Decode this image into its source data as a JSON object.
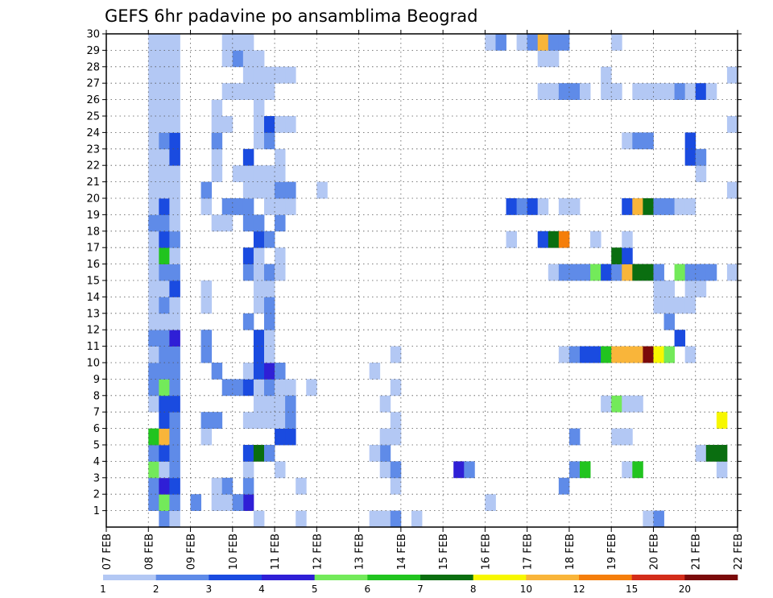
{
  "chart_data": {
    "type": "heatmap",
    "title": "GEFS 6hr padavine po ansamblima Beograd",
    "x_ticks": [
      "07 FEB",
      "08 FEB",
      "09 FEB",
      "10 FEB",
      "11 FEB",
      "12 FEB",
      "13 FEB",
      "14 FEB",
      "15 FEB",
      "16 FEB",
      "17 FEB",
      "18 FEB",
      "19 FEB",
      "20 FEB",
      "21 FEB",
      "22 FEB"
    ],
    "y_ticks": [
      "1",
      "2",
      "3",
      "4",
      "5",
      "6",
      "7",
      "8",
      "9",
      "10",
      "11",
      "12",
      "13",
      "14",
      "15",
      "16",
      "17",
      "18",
      "19",
      "20",
      "21",
      "22",
      "23",
      "24",
      "25",
      "26",
      "27",
      "28",
      "29",
      "30"
    ],
    "ylim": [
      0,
      30
    ],
    "x_steps_per_day": 4,
    "x_total_steps": 60,
    "grid": true,
    "colorbar": {
      "labels": [
        "1",
        "2",
        "3",
        "4",
        "5",
        "6",
        "7",
        "8",
        "10",
        "12",
        "15",
        "20"
      ],
      "colors": [
        "#b3c8f4",
        "#5f8be8",
        "#1a4be0",
        "#2f1fd6",
        "#73ea5a",
        "#21c41f",
        "#0a6e10",
        "#f7f700",
        "#f9b53a",
        "#f57e0a",
        "#d32d1a",
        "#7b0a0a"
      ]
    },
    "cells": [
      [
        0,
        5,
        1
      ],
      [
        0,
        6,
        0
      ],
      [
        1,
        4,
        1
      ],
      [
        1,
        5,
        4
      ],
      [
        1,
        6,
        1
      ],
      [
        1,
        8,
        1
      ],
      [
        1,
        13,
        3
      ],
      [
        2,
        4,
        1
      ],
      [
        2,
        5,
        3
      ],
      [
        2,
        6,
        2
      ],
      [
        2,
        13,
        1
      ],
      [
        2,
        43,
        1
      ],
      [
        3,
        4,
        4
      ],
      [
        3,
        5,
        0
      ],
      [
        3,
        6,
        1
      ],
      [
        3,
        13,
        0
      ],
      [
        3,
        16,
        0
      ],
      [
        3,
        33,
        3
      ],
      [
        3,
        34,
        1
      ],
      [
        4,
        4,
        1
      ],
      [
        4,
        5,
        2
      ],
      [
        4,
        6,
        1
      ],
      [
        4,
        13,
        2
      ],
      [
        4,
        14,
        6
      ],
      [
        4,
        15,
        1
      ],
      [
        5,
        4,
        5
      ],
      [
        5,
        5,
        8
      ],
      [
        5,
        6,
        1
      ],
      [
        5,
        9,
        0
      ],
      [
        5,
        16,
        2
      ],
      [
        5,
        17,
        2
      ],
      [
        6,
        5,
        2
      ],
      [
        6,
        6,
        1
      ],
      [
        6,
        9,
        1
      ],
      [
        6,
        10,
        1
      ],
      [
        6,
        13,
        0
      ],
      [
        6,
        14,
        0
      ],
      [
        6,
        15,
        0
      ],
      [
        6,
        16,
        0
      ],
      [
        6,
        17,
        1
      ],
      [
        7,
        4,
        0
      ],
      [
        7,
        5,
        2
      ],
      [
        7,
        6,
        2
      ],
      [
        7,
        14,
        0
      ],
      [
        7,
        15,
        0
      ],
      [
        7,
        16,
        0
      ],
      [
        8,
        4,
        1
      ],
      [
        8,
        5,
        4
      ],
      [
        8,
        6,
        1
      ],
      [
        8,
        11,
        1
      ],
      [
        8,
        12,
        1
      ],
      [
        8,
        13,
        2
      ],
      [
        8,
        14,
        0
      ],
      [
        8,
        15,
        1
      ],
      [
        8,
        16,
        0
      ],
      [
        8,
        17,
        0
      ],
      [
        9,
        4,
        1
      ],
      [
        9,
        5,
        1
      ],
      [
        9,
        6,
        1
      ],
      [
        9,
        10,
        1
      ],
      [
        9,
        13,
        0
      ],
      [
        9,
        14,
        2
      ],
      [
        9,
        15,
        3
      ],
      [
        9,
        16,
        1
      ],
      [
        10,
        4,
        0
      ],
      [
        10,
        5,
        1
      ],
      [
        10,
        6,
        1
      ],
      [
        10,
        9,
        1
      ],
      [
        10,
        14,
        2
      ],
      [
        10,
        15,
        0
      ],
      [
        11,
        4,
        1
      ],
      [
        11,
        5,
        1
      ],
      [
        11,
        6,
        3
      ],
      [
        11,
        9,
        1
      ],
      [
        11,
        14,
        2
      ],
      [
        11,
        15,
        0
      ],
      [
        12,
        4,
        0
      ],
      [
        12,
        5,
        0
      ],
      [
        12,
        6,
        0
      ],
      [
        12,
        13,
        1
      ],
      [
        12,
        15,
        1
      ],
      [
        13,
        4,
        0
      ],
      [
        13,
        5,
        1
      ],
      [
        13,
        6,
        0
      ],
      [
        13,
        9,
        0
      ],
      [
        13,
        14,
        0
      ],
      [
        13,
        15,
        1
      ],
      [
        14,
        4,
        0
      ],
      [
        14,
        5,
        0
      ],
      [
        14,
        6,
        2
      ],
      [
        14,
        9,
        0
      ],
      [
        14,
        14,
        0
      ],
      [
        14,
        15,
        0
      ],
      [
        15,
        4,
        0
      ],
      [
        15,
        5,
        1
      ],
      [
        15,
        6,
        1
      ],
      [
        15,
        13,
        1
      ],
      [
        15,
        14,
        0
      ],
      [
        15,
        15,
        1
      ],
      [
        15,
        16,
        0
      ],
      [
        16,
        4,
        0
      ],
      [
        16,
        5,
        5
      ],
      [
        16,
        6,
        0
      ],
      [
        16,
        13,
        2
      ],
      [
        16,
        14,
        0
      ],
      [
        16,
        16,
        0
      ],
      [
        17,
        4,
        0
      ],
      [
        17,
        5,
        2
      ],
      [
        17,
        6,
        1
      ],
      [
        17,
        14,
        2
      ],
      [
        17,
        15,
        1
      ],
      [
        18,
        4,
        1
      ],
      [
        18,
        5,
        1
      ],
      [
        18,
        6,
        0
      ],
      [
        18,
        13,
        1
      ],
      [
        18,
        14,
        1
      ],
      [
        18,
        16,
        1
      ],
      [
        19,
        4,
        0
      ],
      [
        19,
        5,
        2
      ],
      [
        19,
        6,
        0
      ],
      [
        19,
        9,
        0
      ],
      [
        19,
        11,
        1
      ],
      [
        19,
        12,
        1
      ],
      [
        19,
        13,
        1
      ],
      [
        19,
        15,
        0
      ],
      [
        19,
        16,
        0
      ],
      [
        19,
        17,
        0
      ],
      [
        20,
        4,
        0
      ],
      [
        20,
        5,
        0
      ],
      [
        20,
        6,
        0
      ],
      [
        20,
        9,
        1
      ],
      [
        20,
        13,
        0
      ],
      [
        20,
        14,
        0
      ],
      [
        20,
        15,
        0
      ],
      [
        20,
        16,
        1
      ],
      [
        20,
        17,
        1
      ],
      [
        20,
        20,
        0
      ],
      [
        21,
        4,
        0
      ],
      [
        21,
        5,
        0
      ],
      [
        21,
        6,
        0
      ],
      [
        21,
        10,
        0
      ],
      [
        21,
        12,
        0
      ],
      [
        21,
        13,
        0
      ],
      [
        21,
        14,
        0
      ],
      [
        21,
        15,
        0
      ],
      [
        21,
        16,
        0
      ],
      [
        22,
        4,
        0
      ],
      [
        22,
        5,
        0
      ],
      [
        22,
        6,
        2
      ],
      [
        22,
        10,
        0
      ],
      [
        22,
        13,
        2
      ],
      [
        22,
        16,
        0
      ],
      [
        23,
        4,
        0
      ],
      [
        23,
        5,
        1
      ],
      [
        23,
        6,
        2
      ],
      [
        23,
        10,
        1
      ],
      [
        23,
        14,
        0
      ],
      [
        23,
        15,
        1
      ],
      [
        24,
        4,
        0
      ],
      [
        24,
        5,
        0
      ],
      [
        24,
        6,
        0
      ],
      [
        24,
        10,
        0
      ],
      [
        24,
        11,
        0
      ],
      [
        24,
        14,
        0
      ],
      [
        24,
        15,
        2
      ],
      [
        24,
        16,
        0
      ],
      [
        24,
        17,
        0
      ],
      [
        25,
        4,
        0
      ],
      [
        25,
        5,
        0
      ],
      [
        25,
        6,
        0
      ],
      [
        25,
        10,
        0
      ],
      [
        25,
        14,
        0
      ],
      [
        26,
        4,
        0
      ],
      [
        26,
        5,
        0
      ],
      [
        26,
        6,
        0
      ],
      [
        26,
        11,
        0
      ],
      [
        26,
        12,
        0
      ],
      [
        26,
        13,
        0
      ],
      [
        26,
        14,
        0
      ],
      [
        26,
        15,
        0
      ],
      [
        27,
        4,
        0
      ],
      [
        27,
        5,
        0
      ],
      [
        27,
        6,
        0
      ],
      [
        27,
        13,
        0
      ],
      [
        27,
        14,
        0
      ],
      [
        27,
        15,
        0
      ],
      [
        27,
        16,
        0
      ],
      [
        27,
        17,
        0
      ],
      [
        28,
        4,
        0
      ],
      [
        28,
        5,
        0
      ],
      [
        28,
        6,
        0
      ],
      [
        28,
        11,
        0
      ],
      [
        28,
        12,
        1
      ],
      [
        28,
        13,
        0
      ],
      [
        28,
        14,
        0
      ],
      [
        29,
        4,
        0
      ],
      [
        29,
        5,
        0
      ],
      [
        29,
        6,
        0
      ],
      [
        29,
        11,
        0
      ],
      [
        29,
        12,
        0
      ],
      [
        29,
        13,
        0
      ],
      [
        0,
        14,
        0
      ],
      [
        0,
        18,
        0
      ],
      [
        1,
        11,
        0
      ],
      [
        2,
        18,
        0
      ],
      [
        7,
        17,
        1
      ],
      [
        8,
        19,
        0
      ],
      [
        0,
        25,
        0
      ],
      [
        0,
        26,
        0
      ],
      [
        0,
        27,
        1
      ],
      [
        0,
        29,
        0
      ],
      [
        2,
        27,
        0
      ],
      [
        3,
        26,
        0
      ],
      [
        3,
        27,
        1
      ],
      [
        4,
        26,
        1
      ],
      [
        4,
        25,
        0
      ],
      [
        5,
        27,
        0
      ],
      [
        5,
        26,
        0
      ],
      [
        6,
        27,
        0
      ],
      [
        7,
        26,
        0
      ],
      [
        8,
        27,
        0
      ],
      [
        9,
        25,
        0
      ],
      [
        10,
        27,
        0
      ],
      [
        1,
        10,
        0
      ],
      [
        1,
        11,
        0
      ],
      [
        1,
        12,
        1
      ],
      [
        2,
        10,
        0
      ],
      [
        2,
        11,
        1
      ],
      [
        18,
        10,
        0
      ],
      [
        18,
        11,
        0
      ],
      [
        0,
        51,
        0
      ],
      [
        0,
        52,
        1
      ],
      [
        1,
        36,
        0
      ],
      [
        3,
        44,
        1
      ],
      [
        3,
        45,
        5
      ],
      [
        3,
        49,
        0
      ],
      [
        3,
        50,
        5
      ],
      [
        3,
        58,
        0
      ],
      [
        4,
        56,
        0
      ],
      [
        4,
        57,
        6
      ],
      [
        4,
        58,
        6
      ],
      [
        5,
        44,
        1
      ],
      [
        5,
        48,
        0
      ],
      [
        5,
        49,
        0
      ],
      [
        6,
        58,
        7
      ],
      [
        7,
        47,
        0
      ],
      [
        7,
        48,
        4
      ],
      [
        7,
        49,
        0
      ],
      [
        7,
        50,
        0
      ],
      [
        10,
        43,
        0
      ],
      [
        10,
        44,
        1
      ],
      [
        10,
        45,
        2
      ],
      [
        10,
        46,
        2
      ],
      [
        10,
        47,
        5
      ],
      [
        10,
        48,
        8
      ],
      [
        10,
        49,
        8
      ],
      [
        10,
        50,
        8
      ],
      [
        10,
        51,
        11
      ],
      [
        10,
        52,
        7
      ],
      [
        10,
        53,
        4
      ],
      [
        10,
        55,
        0
      ],
      [
        11,
        54,
        2
      ],
      [
        12,
        53,
        1
      ],
      [
        13,
        52,
        0
      ],
      [
        13,
        53,
        0
      ],
      [
        13,
        54,
        0
      ],
      [
        13,
        55,
        0
      ],
      [
        14,
        52,
        0
      ],
      [
        14,
        53,
        0
      ],
      [
        14,
        55,
        0
      ],
      [
        14,
        56,
        0
      ],
      [
        15,
        42,
        0
      ],
      [
        15,
        43,
        1
      ],
      [
        15,
        44,
        1
      ],
      [
        15,
        45,
        1
      ],
      [
        15,
        46,
        4
      ],
      [
        15,
        47,
        2
      ],
      [
        15,
        48,
        1
      ],
      [
        15,
        49,
        8
      ],
      [
        15,
        50,
        6
      ],
      [
        15,
        51,
        6
      ],
      [
        15,
        52,
        1
      ],
      [
        15,
        54,
        4
      ],
      [
        15,
        55,
        1
      ],
      [
        15,
        56,
        1
      ],
      [
        15,
        57,
        1
      ],
      [
        15,
        59,
        0
      ],
      [
        16,
        48,
        6
      ],
      [
        16,
        49,
        2
      ],
      [
        17,
        38,
        0
      ],
      [
        17,
        41,
        2
      ],
      [
        17,
        42,
        6
      ],
      [
        17,
        43,
        9
      ],
      [
        17,
        46,
        0
      ],
      [
        17,
        49,
        0
      ],
      [
        19,
        38,
        2
      ],
      [
        19,
        39,
        1
      ],
      [
        19,
        40,
        2
      ],
      [
        19,
        41,
        0
      ],
      [
        19,
        43,
        0
      ],
      [
        19,
        44,
        0
      ],
      [
        19,
        49,
        2
      ],
      [
        19,
        50,
        8
      ],
      [
        19,
        51,
        6
      ],
      [
        19,
        52,
        1
      ],
      [
        19,
        53,
        1
      ],
      [
        19,
        54,
        0
      ],
      [
        19,
        55,
        0
      ],
      [
        20,
        59,
        0
      ],
      [
        21,
        56,
        0
      ],
      [
        22,
        55,
        2
      ],
      [
        22,
        56,
        1
      ],
      [
        23,
        49,
        0
      ],
      [
        23,
        50,
        1
      ],
      [
        23,
        51,
        1
      ],
      [
        23,
        55,
        2
      ],
      [
        24,
        59,
        0
      ],
      [
        26,
        41,
        0
      ],
      [
        26,
        42,
        0
      ],
      [
        26,
        43,
        1
      ],
      [
        26,
        44,
        1
      ],
      [
        26,
        45,
        0
      ],
      [
        26,
        47,
        0
      ],
      [
        26,
        48,
        0
      ],
      [
        26,
        50,
        0
      ],
      [
        26,
        51,
        0
      ],
      [
        26,
        52,
        0
      ],
      [
        26,
        53,
        0
      ],
      [
        26,
        54,
        1
      ],
      [
        26,
        55,
        0
      ],
      [
        26,
        56,
        2
      ],
      [
        26,
        57,
        0
      ],
      [
        27,
        47,
        0
      ],
      [
        27,
        59,
        0
      ],
      [
        28,
        41,
        0
      ],
      [
        28,
        42,
        0
      ],
      [
        29,
        36,
        0
      ],
      [
        29,
        37,
        1
      ],
      [
        29,
        39,
        0
      ],
      [
        29,
        40,
        1
      ],
      [
        29,
        41,
        8
      ],
      [
        29,
        42,
        1
      ],
      [
        29,
        43,
        1
      ],
      [
        29,
        48,
        0
      ]
    ]
  }
}
